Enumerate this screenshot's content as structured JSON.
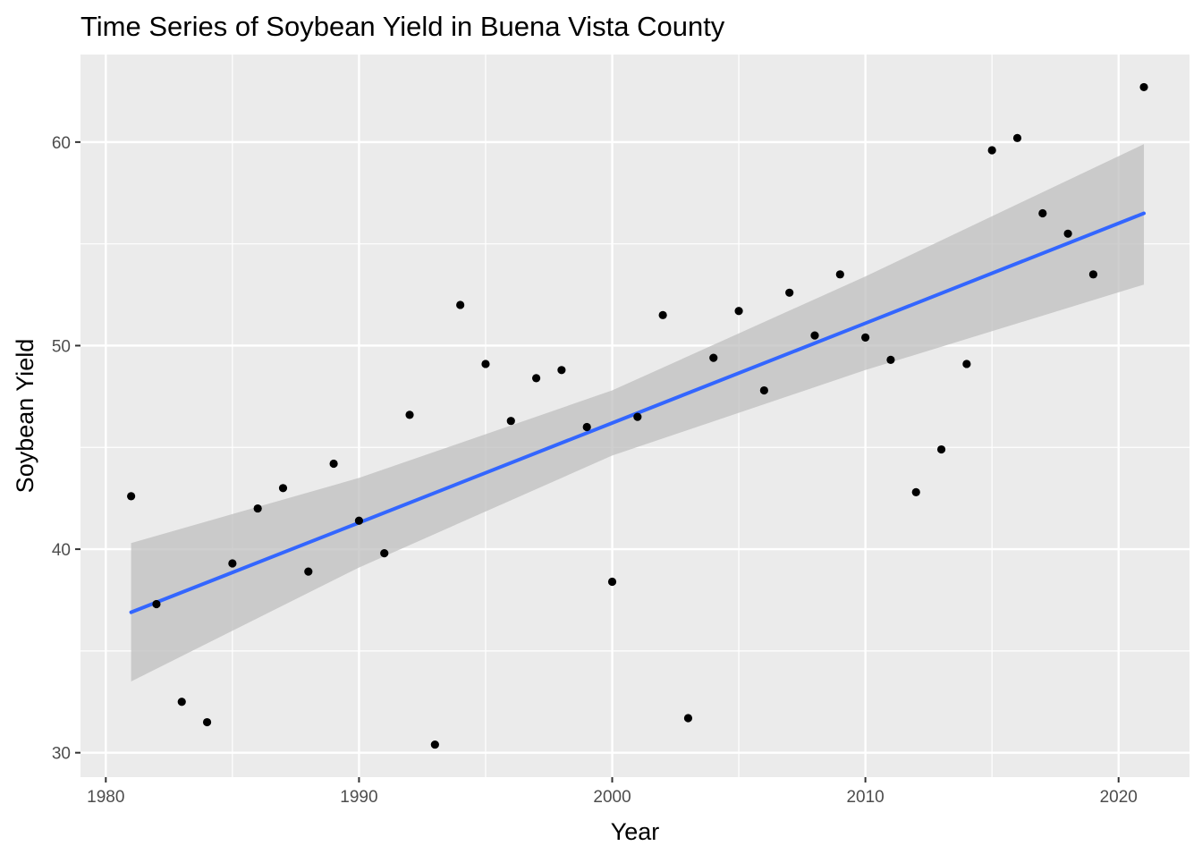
{
  "chart_data": {
    "type": "scatter",
    "title": "Time Series of Soybean Yield in Buena Vista County",
    "xlabel": "Year",
    "ylabel": "Soybean Yield",
    "xlim": [
      1979,
      2022.8
    ],
    "ylim": [
      28.8,
      64.3
    ],
    "x_ticks": [
      1980,
      1990,
      2000,
      2010,
      2020
    ],
    "y_ticks": [
      30,
      40,
      50,
      60
    ],
    "grid": true,
    "legend": "none",
    "colors": {
      "panel": "#ebebeb",
      "grid": "#ffffff",
      "points": "#000000",
      "trend_line": "#3366ff",
      "confidence_band": "#bfbfbf"
    },
    "points": [
      {
        "x": 1981,
        "y": 42.6
      },
      {
        "x": 1982,
        "y": 37.3
      },
      {
        "x": 1983,
        "y": 32.5
      },
      {
        "x": 1984,
        "y": 31.5
      },
      {
        "x": 1985,
        "y": 39.3
      },
      {
        "x": 1986,
        "y": 42.0
      },
      {
        "x": 1987,
        "y": 43.0
      },
      {
        "x": 1988,
        "y": 38.9
      },
      {
        "x": 1989,
        "y": 44.2
      },
      {
        "x": 1990,
        "y": 41.4
      },
      {
        "x": 1991,
        "y": 39.8
      },
      {
        "x": 1992,
        "y": 46.6
      },
      {
        "x": 1993,
        "y": 30.4
      },
      {
        "x": 1994,
        "y": 52.0
      },
      {
        "x": 1995,
        "y": 49.1
      },
      {
        "x": 1996,
        "y": 46.3
      },
      {
        "x": 1997,
        "y": 48.4
      },
      {
        "x": 1998,
        "y": 48.8
      },
      {
        "x": 1999,
        "y": 46.0
      },
      {
        "x": 2000,
        "y": 38.4
      },
      {
        "x": 2001,
        "y": 46.5
      },
      {
        "x": 2002,
        "y": 51.5
      },
      {
        "x": 2003,
        "y": 31.7
      },
      {
        "x": 2004,
        "y": 49.4
      },
      {
        "x": 2005,
        "y": 51.7
      },
      {
        "x": 2006,
        "y": 47.8
      },
      {
        "x": 2007,
        "y": 52.6
      },
      {
        "x": 2008,
        "y": 50.5
      },
      {
        "x": 2009,
        "y": 53.5
      },
      {
        "x": 2010,
        "y": 50.4
      },
      {
        "x": 2011,
        "y": 49.3
      },
      {
        "x": 2012,
        "y": 42.8
      },
      {
        "x": 2013,
        "y": 44.9
      },
      {
        "x": 2014,
        "y": 49.1
      },
      {
        "x": 2015,
        "y": 59.6
      },
      {
        "x": 2016,
        "y": 60.2
      },
      {
        "x": 2017,
        "y": 56.5
      },
      {
        "x": 2018,
        "y": 55.5
      },
      {
        "x": 2019,
        "y": 53.5
      },
      {
        "x": 2021,
        "y": 62.7
      }
    ],
    "trend": {
      "method": "linear",
      "x": [
        1981,
        1990,
        2000,
        2010,
        2021
      ],
      "fit": [
        36.9,
        41.3,
        46.2,
        51.1,
        56.5
      ],
      "lower": [
        33.5,
        39.1,
        44.6,
        48.8,
        53.0
      ],
      "upper": [
        40.3,
        43.5,
        47.8,
        53.4,
        59.9
      ]
    }
  }
}
